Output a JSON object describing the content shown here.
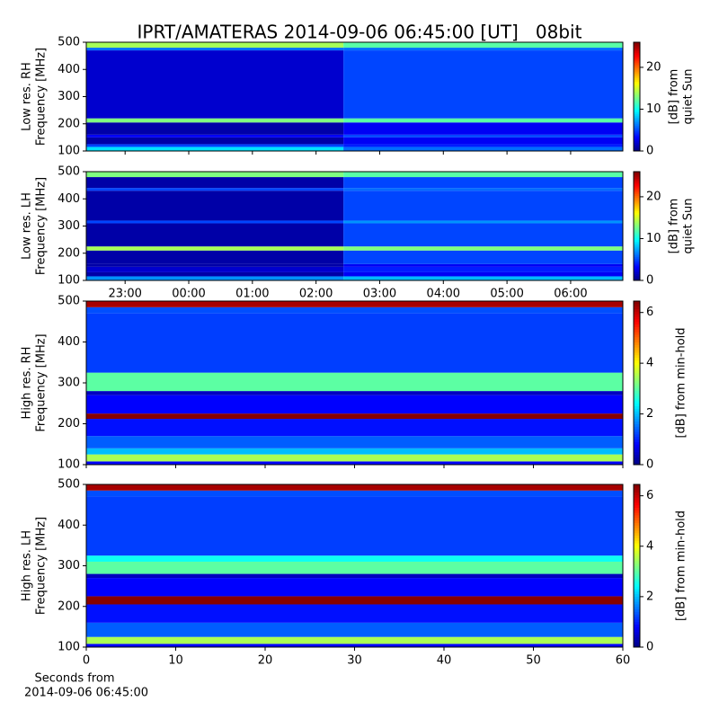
{
  "title": "IPRT/AMATERAS 2014-09-06 06:45:00 [UT]   08bit",
  "chart_data": [
    {
      "type": "heatmap",
      "ylabel": [
        "Low res. RH",
        "Frequency [MHz]"
      ],
      "cbar_label": [
        "[dB] from",
        "quiet Sun"
      ],
      "xlim": [
        -1.61,
        6.82
      ],
      "xticks": [
        -1,
        0,
        1,
        2,
        3,
        4,
        5,
        6
      ],
      "ylim": [
        100,
        500
      ],
      "yticks": [
        100,
        200,
        300,
        400,
        500
      ],
      "clim": [
        0,
        26
      ],
      "cticks": [
        0,
        10,
        20
      ],
      "x": [
        -1.61,
        2.43,
        6.82
      ],
      "y": [
        100,
        115,
        125,
        150,
        160,
        205,
        220,
        300,
        470,
        480,
        500
      ],
      "z": [
        [
          9,
          6
        ],
        [
          5,
          4
        ],
        [
          1,
          3
        ],
        [
          3,
          5
        ],
        [
          1,
          3
        ],
        [
          13,
          12
        ],
        [
          2,
          5
        ],
        [
          2,
          5
        ],
        [
          6,
          6
        ],
        [
          14,
          12
        ]
      ]
    },
    {
      "type": "heatmap",
      "ylabel": [
        "Low res. LH",
        "Frequency [MHz]"
      ],
      "cbar_label": [
        "[dB] from",
        "quiet Sun"
      ],
      "xlim": [
        -1.61,
        6.82
      ],
      "xticks": [
        {
          "value": -1,
          "label": "23:00"
        },
        {
          "value": 0,
          "label": "00:00"
        },
        {
          "value": 1,
          "label": "01:00"
        },
        {
          "value": 2,
          "label": "02:00"
        },
        {
          "value": 3,
          "label": "03:00"
        },
        {
          "value": 4,
          "label": "04:00"
        },
        {
          "value": 5,
          "label": "05:00"
        },
        {
          "value": 6,
          "label": "06:00"
        }
      ],
      "ylim": [
        100,
        500
      ],
      "yticks": [
        100,
        200,
        300,
        400,
        500
      ],
      "clim": [
        0,
        26
      ],
      "cticks": [
        0,
        10,
        20
      ],
      "x": [
        -1.61,
        2.43,
        6.82
      ],
      "y": [
        100,
        115,
        130,
        150,
        160,
        210,
        225,
        310,
        320,
        430,
        440,
        480,
        500
      ],
      "z": [
        [
          7,
          8
        ],
        [
          1,
          3
        ],
        [
          2,
          4
        ],
        [
          1,
          3
        ],
        [
          1,
          5
        ],
        [
          14,
          13
        ],
        [
          1,
          5
        ],
        [
          5,
          7
        ],
        [
          1,
          5
        ],
        [
          5,
          6
        ],
        [
          1,
          5
        ],
        [
          13,
          12
        ]
      ]
    },
    {
      "type": "heatmap",
      "ylabel": [
        "High res. RH",
        "Frequency [MHz]"
      ],
      "cbar_label": [
        "[dB] from min-hold"
      ],
      "xlim": [
        0,
        60
      ],
      "xticks": [
        0,
        10,
        20,
        30,
        40,
        50,
        60
      ],
      "ylim": [
        100,
        500
      ],
      "yticks": [
        100,
        200,
        300,
        400,
        500
      ],
      "clim": [
        0,
        6.45
      ],
      "cticks": [
        0,
        2,
        4,
        6
      ],
      "x": [
        0,
        60
      ],
      "y": [
        100,
        108,
        125,
        140,
        170,
        212,
        225,
        270,
        280,
        325,
        470,
        485,
        500
      ],
      "z": [
        [
          0.8
        ],
        [
          3.5
        ],
        [
          2
        ],
        [
          1.4
        ],
        [
          0.9
        ],
        [
          6.4
        ],
        [
          0.8
        ],
        [
          0.4
        ],
        [
          3
        ],
        [
          1.2
        ],
        [
          1.3
        ],
        [
          6.2
        ]
      ]
    },
    {
      "type": "heatmap",
      "ylabel": [
        "High res. LH",
        "Frequency [MHz]"
      ],
      "cbar_label": [
        "[dB] from min-hold"
      ],
      "xlim": [
        0,
        60
      ],
      "xticks": [
        0,
        10,
        20,
        30,
        40,
        50,
        60
      ],
      "ylim": [
        100,
        500
      ],
      "yticks": [
        100,
        200,
        300,
        400,
        500
      ],
      "clim": [
        0,
        6.45
      ],
      "cticks": [
        0,
        2,
        4,
        6
      ],
      "x": [
        0,
        60
      ],
      "y": [
        100,
        108,
        125,
        160,
        205,
        225,
        270,
        280,
        310,
        325,
        470,
        485,
        500
      ],
      "z": [
        [
          0.8
        ],
        [
          3.5
        ],
        [
          1.4
        ],
        [
          0.9
        ],
        [
          6.4
        ],
        [
          0.8
        ],
        [
          0.4
        ],
        [
          3
        ],
        [
          2.5
        ],
        [
          1.2
        ],
        [
          1.3
        ],
        [
          6.2
        ]
      ],
      "xlabel": [
        "Seconds from",
        "2014-09-06 06:45:00"
      ]
    }
  ]
}
